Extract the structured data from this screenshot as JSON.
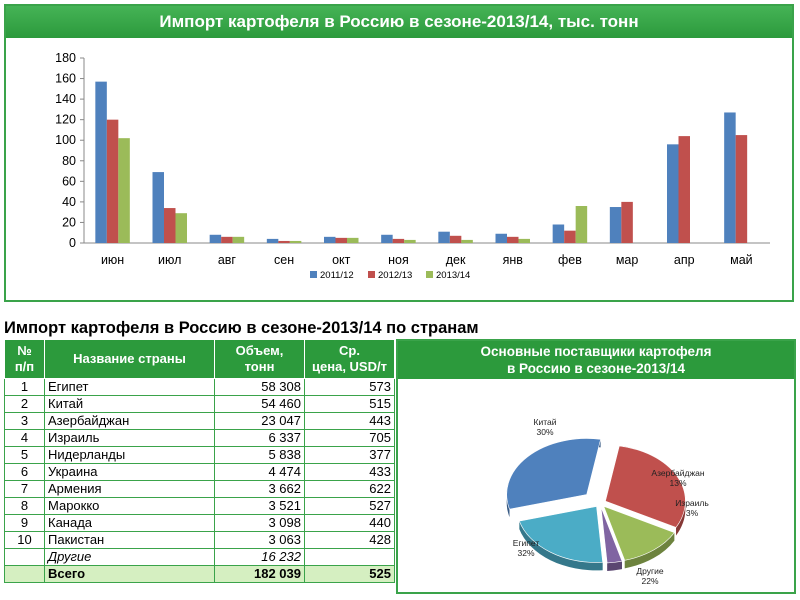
{
  "bar_chart_title": "Импорт картофеля в Россию в сезоне-2013/14, тыс. тонн",
  "table_title": "Импорт картофеля в Россию в сезоне-2013/14 по странам",
  "table": {
    "headers": [
      "№ п/п",
      "Название страны",
      "Объем, тонн",
      "Ср. цена, USD/т"
    ],
    "rows": [
      {
        "n": "1",
        "country": "Египет",
        "volume": "58 308",
        "price": "573"
      },
      {
        "n": "2",
        "country": "Китай",
        "volume": "54 460",
        "price": "515"
      },
      {
        "n": "3",
        "country": "Азербайджан",
        "volume": "23 047",
        "price": "443"
      },
      {
        "n": "4",
        "country": "Израиль",
        "volume": "6 337",
        "price": "705"
      },
      {
        "n": "5",
        "country": "Нидерланды",
        "volume": "5 838",
        "price": "377"
      },
      {
        "n": "6",
        "country": "Украина",
        "volume": "4 474",
        "price": "433"
      },
      {
        "n": "7",
        "country": "Армения",
        "volume": "3 662",
        "price": "622"
      },
      {
        "n": "8",
        "country": "Марокко",
        "volume": "3 521",
        "price": "527"
      },
      {
        "n": "9",
        "country": "Канада",
        "volume": "3 098",
        "price": "440"
      },
      {
        "n": "10",
        "country": "Пакистан",
        "volume": "3 063",
        "price": "428"
      }
    ],
    "other": {
      "country": "Другие",
      "volume": "16 232"
    },
    "total": {
      "country": "Всего",
      "volume": "182 039",
      "price": "525"
    }
  },
  "pie_title": "Основные поставщики картофеля в Россию в сезоне-2013/14",
  "chart_data": [
    {
      "type": "bar",
      "title": "Импорт картофеля в Россию в сезоне-2013/14, тыс. тонн",
      "categories": [
        "июн",
        "июл",
        "авг",
        "сен",
        "окт",
        "ноя",
        "дек",
        "янв",
        "фев",
        "мар",
        "апр",
        "май"
      ],
      "ylim": [
        0,
        180
      ],
      "yticks": [
        0,
        20,
        40,
        60,
        80,
        100,
        120,
        140,
        160,
        180
      ],
      "grid": false,
      "legend": "bottom",
      "series": [
        {
          "name": "2011/12",
          "color": "#4f81bd",
          "values": [
            157,
            69,
            8,
            4,
            6,
            8,
            11,
            9,
            18,
            35,
            96,
            127
          ]
        },
        {
          "name": "2012/13",
          "color": "#c0504d",
          "values": [
            120,
            34,
            6,
            2,
            5,
            4,
            7,
            6,
            12,
            40,
            104,
            105
          ]
        },
        {
          "name": "2013/14",
          "color": "#9bbb59",
          "values": [
            102,
            29,
            6,
            2,
            5,
            3,
            3,
            4,
            36,
            null,
            null,
            null
          ]
        }
      ]
    },
    {
      "type": "pie",
      "title": "Основные поставщики картофеля в Россию в сезоне-2013/14",
      "slices": [
        {
          "label": "Китай",
          "pct_label": "30%",
          "value": 30,
          "color": "#c0504d"
        },
        {
          "label": "Азербайджан",
          "pct_label": "13%",
          "value": 13,
          "color": "#9bbb59"
        },
        {
          "label": "Израиль",
          "pct_label": "3%",
          "value": 3,
          "color": "#8064a2"
        },
        {
          "label": "Другие",
          "pct_label": "22%",
          "value": 22,
          "color": "#4bacc6"
        },
        {
          "label": "Египет",
          "pct_label": "32%",
          "value": 32,
          "color": "#4f81bd"
        }
      ]
    }
  ]
}
